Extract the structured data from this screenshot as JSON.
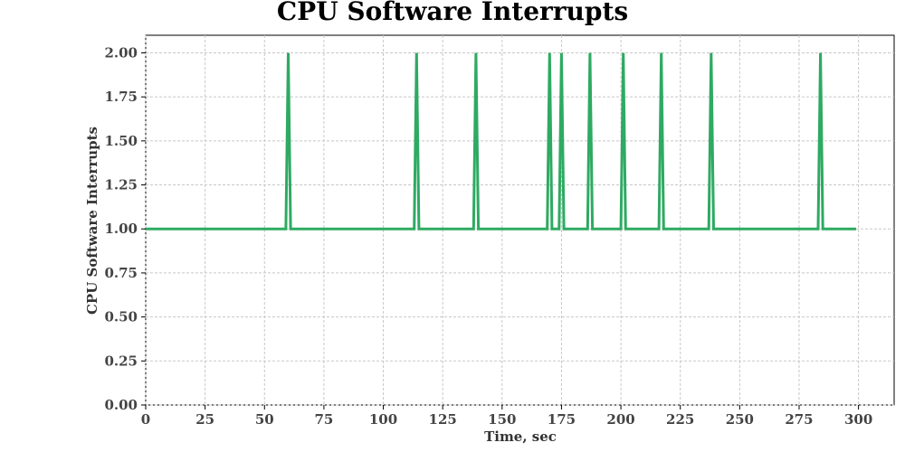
{
  "chart_data": {
    "type": "line",
    "title": "CPU Software Interrupts",
    "xlabel": "Time, sec",
    "ylabel": "CPU Software Interrupts",
    "xlim": [
      0,
      315
    ],
    "ylim": [
      0,
      2.1
    ],
    "xticks": [
      0,
      25,
      50,
      75,
      100,
      125,
      150,
      175,
      200,
      225,
      250,
      275,
      300
    ],
    "yticks": [
      "0.00",
      "0.25",
      "0.50",
      "0.75",
      "1.00",
      "1.25",
      "1.50",
      "1.75",
      "2.00"
    ],
    "grid": true,
    "line_color": "#2eaa62",
    "series": [
      {
        "x": [
          0,
          59,
          60,
          61,
          113,
          114,
          115,
          138,
          139,
          140,
          169,
          170,
          171,
          174,
          175,
          176,
          186,
          187,
          188,
          200,
          201,
          202,
          216,
          217,
          218,
          237,
          238,
          239,
          283,
          284,
          285,
          299
        ],
        "values": [
          1,
          1,
          2,
          1,
          1,
          2,
          1,
          1,
          2,
          1,
          1,
          2,
          1,
          1,
          2,
          1,
          1,
          2,
          1,
          1,
          2,
          1,
          1,
          2,
          1,
          1,
          2,
          1,
          1,
          2,
          1,
          1
        ]
      }
    ]
  }
}
